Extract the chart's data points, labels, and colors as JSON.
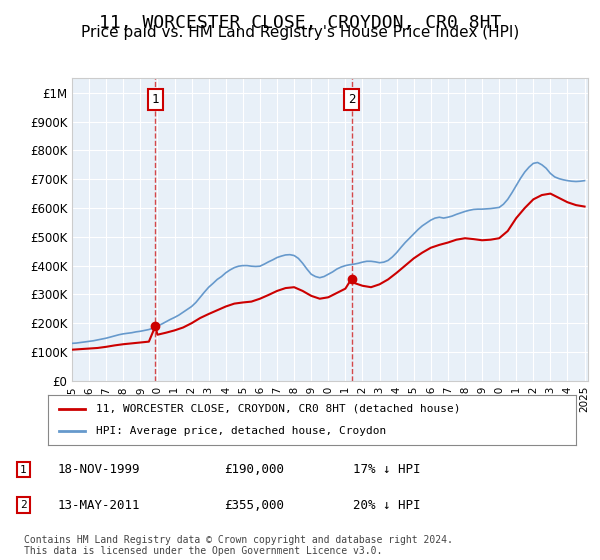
{
  "title": "11, WORCESTER CLOSE, CROYDON, CR0 8HT",
  "subtitle": "Price paid vs. HM Land Registry's House Price Index (HPI)",
  "title_fontsize": 13,
  "subtitle_fontsize": 11,
  "background_color": "#ffffff",
  "plot_bg_color": "#e8f0f8",
  "grid_color": "#ffffff",
  "hpi_color": "#6699cc",
  "price_color": "#cc0000",
  "ylim": [
    0,
    1050000
  ],
  "yticks": [
    0,
    100000,
    200000,
    300000,
    400000,
    500000,
    600000,
    700000,
    800000,
    900000,
    1000000
  ],
  "ytick_labels": [
    "£0",
    "£100K",
    "£200K",
    "£300K",
    "£400K",
    "£500K",
    "£600K",
    "£700K",
    "£800K",
    "£900K",
    "£1M"
  ],
  "x_start_year": 1995,
  "x_end_year": 2025,
  "marker1_date": 1999.88,
  "marker1_price": 190000,
  "marker1_label": "1",
  "marker2_date": 2011.37,
  "marker2_price": 355000,
  "marker2_label": "2",
  "legend_entries": [
    "11, WORCESTER CLOSE, CROYDON, CR0 8HT (detached house)",
    "HPI: Average price, detached house, Croydon"
  ],
  "table_rows": [
    [
      "1",
      "18-NOV-1999",
      "£190,000",
      "17% ↓ HPI"
    ],
    [
      "2",
      "13-MAY-2011",
      "£355,000",
      "20% ↓ HPI"
    ]
  ],
  "footer_text": "Contains HM Land Registry data © Crown copyright and database right 2024.\nThis data is licensed under the Open Government Licence v3.0.",
  "hpi_years": [
    1995,
    1995.25,
    1995.5,
    1995.75,
    1996,
    1996.25,
    1996.5,
    1996.75,
    1997,
    1997.25,
    1997.5,
    1997.75,
    1998,
    1998.25,
    1998.5,
    1998.75,
    1999,
    1999.25,
    1999.5,
    1999.75,
    2000,
    2000.25,
    2000.5,
    2000.75,
    2001,
    2001.25,
    2001.5,
    2001.75,
    2002,
    2002.25,
    2002.5,
    2002.75,
    2003,
    2003.25,
    2003.5,
    2003.75,
    2004,
    2004.25,
    2004.5,
    2004.75,
    2005,
    2005.25,
    2005.5,
    2005.75,
    2006,
    2006.25,
    2006.5,
    2006.75,
    2007,
    2007.25,
    2007.5,
    2007.75,
    2008,
    2008.25,
    2008.5,
    2008.75,
    2009,
    2009.25,
    2009.5,
    2009.75,
    2010,
    2010.25,
    2010.5,
    2010.75,
    2011,
    2011.25,
    2011.5,
    2011.75,
    2012,
    2012.25,
    2012.5,
    2012.75,
    2013,
    2013.25,
    2013.5,
    2013.75,
    2014,
    2014.25,
    2014.5,
    2014.75,
    2015,
    2015.25,
    2015.5,
    2015.75,
    2016,
    2016.25,
    2016.5,
    2016.75,
    2017,
    2017.25,
    2017.5,
    2017.75,
    2018,
    2018.25,
    2018.5,
    2018.75,
    2019,
    2019.25,
    2019.5,
    2019.75,
    2020,
    2020.25,
    2020.5,
    2020.75,
    2021,
    2021.25,
    2021.5,
    2021.75,
    2022,
    2022.25,
    2022.5,
    2022.75,
    2023,
    2023.25,
    2023.5,
    2023.75,
    2024,
    2024.25,
    2024.5,
    2024.75,
    2025
  ],
  "hpi_values": [
    130000,
    131000,
    133000,
    135000,
    137000,
    139000,
    142000,
    145000,
    148000,
    152000,
    156000,
    160000,
    163000,
    165000,
    167000,
    170000,
    172000,
    175000,
    178000,
    183000,
    190000,
    197000,
    205000,
    213000,
    220000,
    228000,
    238000,
    248000,
    258000,
    272000,
    290000,
    308000,
    325000,
    338000,
    352000,
    362000,
    375000,
    385000,
    393000,
    398000,
    400000,
    400000,
    398000,
    397000,
    398000,
    405000,
    413000,
    420000,
    428000,
    433000,
    437000,
    438000,
    435000,
    425000,
    408000,
    388000,
    370000,
    362000,
    358000,
    362000,
    370000,
    378000,
    388000,
    395000,
    400000,
    403000,
    405000,
    408000,
    412000,
    415000,
    415000,
    413000,
    410000,
    412000,
    418000,
    430000,
    445000,
    463000,
    480000,
    495000,
    510000,
    525000,
    538000,
    548000,
    558000,
    565000,
    568000,
    565000,
    568000,
    572000,
    578000,
    583000,
    588000,
    592000,
    595000,
    596000,
    596000,
    597000,
    598000,
    600000,
    602000,
    613000,
    630000,
    653000,
    678000,
    703000,
    725000,
    742000,
    755000,
    758000,
    750000,
    738000,
    720000,
    708000,
    702000,
    698000,
    695000,
    693000,
    692000,
    693000,
    695000
  ],
  "price_years": [
    1995,
    1995.5,
    1996,
    1996.5,
    1997,
    1997.5,
    1998,
    1998.5,
    1999,
    1999.5,
    1999.88,
    2000,
    2000.5,
    2001,
    2001.5,
    2002,
    2002.5,
    2003,
    2003.5,
    2004,
    2004.5,
    2005,
    2005.5,
    2006,
    2006.5,
    2007,
    2007.5,
    2008,
    2008.5,
    2009,
    2009.5,
    2010,
    2010.5,
    2011,
    2011.37,
    2011.5,
    2012,
    2012.5,
    2013,
    2013.5,
    2014,
    2014.5,
    2015,
    2015.5,
    2016,
    2016.5,
    2017,
    2017.5,
    2018,
    2018.5,
    2019,
    2019.5,
    2020,
    2020.5,
    2021,
    2021.5,
    2022,
    2022.5,
    2023,
    2023.5,
    2024,
    2024.5,
    2025
  ],
  "price_values": [
    108000,
    110000,
    112000,
    114000,
    118000,
    123000,
    127000,
    130000,
    133000,
    136000,
    190000,
    160000,
    167000,
    175000,
    185000,
    200000,
    218000,
    232000,
    245000,
    258000,
    268000,
    272000,
    275000,
    285000,
    298000,
    312000,
    322000,
    325000,
    312000,
    295000,
    285000,
    290000,
    305000,
    320000,
    355000,
    340000,
    330000,
    325000,
    335000,
    352000,
    375000,
    400000,
    425000,
    445000,
    462000,
    472000,
    480000,
    490000,
    495000,
    492000,
    488000,
    490000,
    495000,
    520000,
    565000,
    600000,
    630000,
    645000,
    650000,
    635000,
    620000,
    610000,
    605000
  ]
}
